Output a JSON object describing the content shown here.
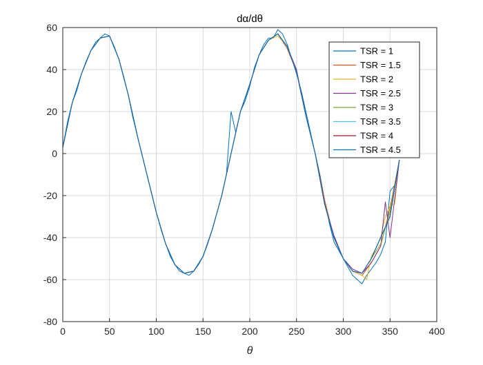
{
  "chart_data": {
    "type": "line",
    "title": "dα/dθ",
    "xlabel": "θ",
    "ylabel": "",
    "xlim": [
      0,
      400
    ],
    "ylim": [
      -80,
      60
    ],
    "xticks": [
      0,
      50,
      100,
      150,
      200,
      250,
      300,
      350,
      400
    ],
    "yticks": [
      -80,
      -60,
      -40,
      -20,
      0,
      20,
      40,
      60
    ],
    "grid": true,
    "legend_position": "top-right",
    "series": [
      {
        "name": "TSR = 1",
        "color": "#0072BD",
        "x": [
          0,
          5,
          10,
          15,
          20,
          25,
          30,
          35,
          40,
          45,
          50,
          55,
          60,
          65,
          70,
          75,
          80,
          85,
          90,
          95,
          100,
          105,
          110,
          115,
          120,
          125,
          130,
          135,
          140,
          145,
          150,
          155,
          160,
          165,
          170,
          175,
          180,
          185,
          190,
          195,
          200,
          205,
          210,
          215,
          220,
          225,
          230,
          235,
          240,
          245,
          250,
          255,
          260,
          265,
          270,
          275,
          280,
          285,
          290,
          295,
          300,
          305,
          310,
          315,
          320,
          325,
          330,
          335,
          340,
          345,
          350,
          355,
          360
        ],
        "y": [
          3,
          15,
          24,
          30,
          38,
          44,
          49,
          53,
          55,
          57,
          56,
          51,
          45,
          37,
          28,
          17,
          8,
          -1,
          -10,
          -19,
          -28,
          -36,
          -43,
          -49,
          -53,
          -56,
          -57,
          -58,
          -56,
          -53,
          -49,
          -43,
          -36,
          -28,
          -20,
          -10,
          20,
          10,
          20,
          25,
          32,
          41,
          47,
          52,
          55,
          55,
          59,
          57,
          52,
          45,
          38,
          30,
          20,
          10,
          0,
          -10,
          -22,
          -33,
          -42,
          -46,
          -50,
          -54,
          -58,
          -60,
          -62,
          -58,
          -55,
          -52,
          -48,
          -42,
          -18,
          -15,
          -3
        ]
      },
      {
        "name": "TSR = 1.5",
        "color": "#D95319",
        "x": [
          0,
          10,
          20,
          30,
          40,
          50,
          60,
          70,
          80,
          90,
          100,
          110,
          120,
          130,
          140,
          150,
          160,
          170,
          180,
          190,
          200,
          210,
          220,
          230,
          240,
          250,
          260,
          270,
          280,
          290,
          300,
          310,
          320,
          330,
          340,
          350,
          360
        ],
        "y": [
          3,
          24,
          38,
          49,
          55,
          56,
          45,
          28,
          8,
          -10,
          -28,
          -43,
          -53,
          -57,
          -56,
          -49,
          -36,
          -20,
          0,
          20,
          33,
          47,
          54,
          57,
          50,
          39,
          18,
          0,
          -22,
          -40,
          -50,
          -56,
          -58,
          -52,
          -44,
          -26,
          -3
        ]
      },
      {
        "name": "TSR = 2",
        "color": "#EDB120",
        "x": [
          0,
          10,
          20,
          30,
          40,
          50,
          60,
          70,
          80,
          90,
          100,
          110,
          120,
          130,
          140,
          150,
          160,
          170,
          180,
          190,
          200,
          210,
          220,
          230,
          240,
          250,
          260,
          270,
          280,
          290,
          300,
          310,
          320,
          325,
          330,
          335,
          340,
          345,
          350,
          355,
          360
        ],
        "y": [
          3,
          24,
          38,
          49,
          55,
          56,
          45,
          28,
          8,
          -10,
          -28,
          -43,
          -53,
          -57,
          -56,
          -49,
          -36,
          -20,
          0,
          20,
          33,
          47,
          54,
          56,
          51,
          39,
          18,
          0,
          -24,
          -39,
          -50,
          -56,
          -58,
          -60,
          -49,
          -45,
          -40,
          -30,
          -25,
          -24,
          -3
        ]
      },
      {
        "name": "TSR = 2.5",
        "color": "#7E2F8E",
        "x": [
          0,
          10,
          20,
          30,
          40,
          50,
          60,
          70,
          80,
          90,
          100,
          110,
          120,
          130,
          140,
          150,
          160,
          170,
          180,
          190,
          200,
          210,
          220,
          230,
          240,
          250,
          260,
          270,
          280,
          290,
          300,
          310,
          320,
          330,
          340,
          345,
          350,
          360
        ],
        "y": [
          3,
          24,
          38,
          49,
          55,
          56,
          45,
          28,
          8,
          -10,
          -28,
          -43,
          -53,
          -57,
          -56,
          -49,
          -36,
          -20,
          0,
          20,
          33,
          47,
          54,
          57,
          51,
          40,
          18,
          0,
          -24,
          -39,
          -50,
          -55,
          -57,
          -52,
          -44,
          -23,
          -40,
          -3
        ]
      },
      {
        "name": "TSR = 3",
        "color": "#77AC30",
        "x": [
          0,
          10,
          20,
          30,
          40,
          50,
          60,
          70,
          80,
          90,
          100,
          110,
          120,
          130,
          140,
          150,
          160,
          170,
          180,
          190,
          200,
          210,
          220,
          230,
          240,
          250,
          260,
          270,
          280,
          290,
          300,
          310,
          320,
          330,
          340,
          350,
          360
        ],
        "y": [
          3,
          24,
          38,
          49,
          55,
          56,
          45,
          28,
          8,
          -10,
          -28,
          -43,
          -53,
          -57,
          -56,
          -49,
          -36,
          -20,
          0,
          20,
          33,
          47,
          54,
          57,
          51,
          39,
          18,
          0,
          -24,
          -40,
          -50,
          -56,
          -57,
          -50,
          -43,
          -28,
          -3
        ]
      },
      {
        "name": "TSR = 3.5",
        "color": "#4DBEEE",
        "x": [
          0,
          10,
          20,
          30,
          40,
          50,
          60,
          70,
          80,
          90,
          100,
          110,
          120,
          130,
          140,
          150,
          160,
          170,
          180,
          190,
          200,
          210,
          220,
          230,
          240,
          250,
          260,
          270,
          280,
          290,
          300,
          310,
          320,
          330,
          340,
          350,
          360
        ],
        "y": [
          3,
          24,
          38,
          49,
          55,
          56,
          45,
          28,
          8,
          -10,
          -28,
          -43,
          -53,
          -57,
          -56,
          -49,
          -36,
          -20,
          0,
          20,
          33,
          47,
          54,
          57,
          51,
          39,
          18,
          0,
          -24,
          -40,
          -50,
          -56,
          -57,
          -50,
          -40,
          -30,
          -3
        ]
      },
      {
        "name": "TSR = 4",
        "color": "#A2142F",
        "x": [
          0,
          10,
          20,
          30,
          40,
          50,
          60,
          70,
          80,
          90,
          100,
          110,
          120,
          130,
          140,
          150,
          160,
          170,
          180,
          190,
          200,
          210,
          220,
          230,
          240,
          250,
          260,
          270,
          280,
          290,
          300,
          310,
          320,
          330,
          340,
          350,
          360
        ],
        "y": [
          3,
          24,
          38,
          49,
          55,
          56,
          45,
          28,
          8,
          -10,
          -28,
          -43,
          -53,
          -57,
          -56,
          -49,
          -36,
          -20,
          0,
          20,
          33,
          47,
          54,
          57,
          51,
          39,
          18,
          0,
          -24,
          -40,
          -50,
          -56,
          -57,
          -50,
          -40,
          -30,
          -3
        ]
      },
      {
        "name": "TSR = 4.5",
        "color": "#0072BD",
        "x": [
          0,
          10,
          20,
          30,
          40,
          50,
          60,
          70,
          80,
          90,
          100,
          110,
          120,
          130,
          140,
          150,
          160,
          170,
          180,
          190,
          200,
          210,
          220,
          230,
          240,
          250,
          260,
          270,
          280,
          290,
          300,
          310,
          320,
          330,
          340,
          350,
          360
        ],
        "y": [
          3,
          24,
          38,
          49,
          55,
          56,
          45,
          28,
          8,
          -10,
          -28,
          -43,
          -53,
          -57,
          -56,
          -49,
          -36,
          -20,
          0,
          20,
          33,
          47,
          54,
          57,
          51,
          39,
          18,
          0,
          -24,
          -40,
          -50,
          -56,
          -57,
          -50,
          -40,
          -30,
          -3
        ]
      }
    ]
  }
}
